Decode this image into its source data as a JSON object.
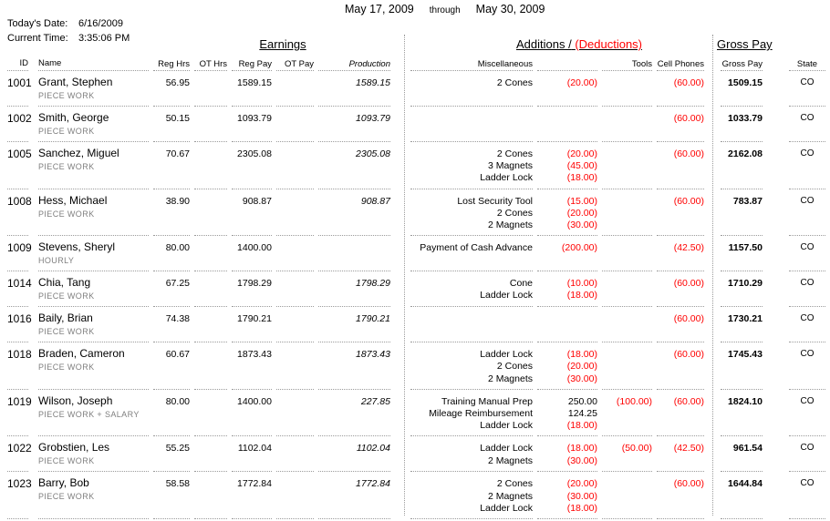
{
  "header": {
    "period_start": "May 17, 2009",
    "period_connector": "through",
    "period_end": "May 30, 2009",
    "todays_date_label": "Today's Date:",
    "todays_date_value": "6/16/2009",
    "current_time_label": "Current Time:",
    "current_time_value": "3:35:06 PM"
  },
  "section_titles": {
    "earnings": "Earnings",
    "additions": "Additions /",
    "deductions": "(Deductions)",
    "gross_pay": "Gross Pay"
  },
  "columns": {
    "id": "ID",
    "name": "Name",
    "reg_hrs": "Reg Hrs",
    "ot_hrs": "OT Hrs",
    "reg_pay": "Reg Pay",
    "ot_pay": "OT Pay",
    "production": "Production",
    "miscellaneous": "Miscellaneous",
    "tools": "Tools",
    "cell_phones": "Cell Phones",
    "gross_pay": "Gross Pay",
    "state": "State"
  },
  "colors": {
    "deduction_red": "#ff0000",
    "muted_gray": "#7f7f7f",
    "line_gray": "#9b9b9b"
  },
  "rows": [
    {
      "id": "1001",
      "name": "Grant, Stephen",
      "pay_type": "PIECE WORK",
      "reg_hrs": "56.95",
      "ot_hrs": "",
      "reg_pay": "1589.15",
      "ot_pay": "",
      "production": "1589.15",
      "misc": [
        {
          "label": "2 Cones",
          "amount": "(20.00)",
          "negative": true
        }
      ],
      "tools": "",
      "cell_phones": "(60.00)",
      "gross_pay": "1509.15",
      "state": "CO"
    },
    {
      "id": "1002",
      "name": "Smith, George",
      "pay_type": "PIECE WORK",
      "reg_hrs": "50.15",
      "ot_hrs": "",
      "reg_pay": "1093.79",
      "ot_pay": "",
      "production": "1093.79",
      "misc": [],
      "tools": "",
      "cell_phones": "(60.00)",
      "gross_pay": "1033.79",
      "state": "CO"
    },
    {
      "id": "1005",
      "name": "Sanchez, Miguel",
      "pay_type": "PIECE WORK",
      "reg_hrs": "70.67",
      "ot_hrs": "",
      "reg_pay": "2305.08",
      "ot_pay": "",
      "production": "2305.08",
      "misc": [
        {
          "label": "2 Cones",
          "amount": "(20.00)",
          "negative": true
        },
        {
          "label": "3 Magnets",
          "amount": "(45.00)",
          "negative": true
        },
        {
          "label": "Ladder Lock",
          "amount": "(18.00)",
          "negative": true
        }
      ],
      "tools": "",
      "cell_phones": "(60.00)",
      "gross_pay": "2162.08",
      "state": "CO"
    },
    {
      "id": "1008",
      "name": "Hess, Michael",
      "pay_type": "PIECE WORK",
      "reg_hrs": "38.90",
      "ot_hrs": "",
      "reg_pay": "908.87",
      "ot_pay": "",
      "production": "908.87",
      "misc": [
        {
          "label": "Lost Security Tool",
          "amount": "(15.00)",
          "negative": true
        },
        {
          "label": "2 Cones",
          "amount": "(20.00)",
          "negative": true
        },
        {
          "label": "2 Magnets",
          "amount": "(30.00)",
          "negative": true
        }
      ],
      "tools": "",
      "cell_phones": "(60.00)",
      "gross_pay": "783.87",
      "state": "CO"
    },
    {
      "id": "1009",
      "name": "Stevens, Sheryl",
      "pay_type": "HOURLY",
      "reg_hrs": "80.00",
      "ot_hrs": "",
      "reg_pay": "1400.00",
      "ot_pay": "",
      "production": "",
      "misc": [
        {
          "label": "Payment of Cash Advance",
          "amount": "(200.00)",
          "negative": true
        }
      ],
      "tools": "",
      "cell_phones": "(42.50)",
      "gross_pay": "1157.50",
      "state": "CO"
    },
    {
      "id": "1014",
      "name": "Chia, Tang",
      "pay_type": "PIECE WORK",
      "reg_hrs": "67.25",
      "ot_hrs": "",
      "reg_pay": "1798.29",
      "ot_pay": "",
      "production": "1798.29",
      "misc": [
        {
          "label": "Cone",
          "amount": "(10.00)",
          "negative": true
        },
        {
          "label": "Ladder Lock",
          "amount": "(18.00)",
          "negative": true
        }
      ],
      "tools": "",
      "cell_phones": "(60.00)",
      "gross_pay": "1710.29",
      "state": "CO"
    },
    {
      "id": "1016",
      "name": "Baily, Brian",
      "pay_type": "PIECE WORK",
      "reg_hrs": "74.38",
      "ot_hrs": "",
      "reg_pay": "1790.21",
      "ot_pay": "",
      "production": "1790.21",
      "misc": [],
      "tools": "",
      "cell_phones": "(60.00)",
      "gross_pay": "1730.21",
      "state": "CO"
    },
    {
      "id": "1018",
      "name": "Braden, Cameron",
      "pay_type": "PIECE WORK",
      "reg_hrs": "60.67",
      "ot_hrs": "",
      "reg_pay": "1873.43",
      "ot_pay": "",
      "production": "1873.43",
      "misc": [
        {
          "label": "Ladder Lock",
          "amount": "(18.00)",
          "negative": true
        },
        {
          "label": "2 Cones",
          "amount": "(20.00)",
          "negative": true
        },
        {
          "label": "2 Magnets",
          "amount": "(30.00)",
          "negative": true
        }
      ],
      "tools": "",
      "cell_phones": "(60.00)",
      "gross_pay": "1745.43",
      "state": "CO"
    },
    {
      "id": "1019",
      "name": "Wilson, Joseph",
      "pay_type": "PIECE WORK + SALARY",
      "reg_hrs": "80.00",
      "ot_hrs": "",
      "reg_pay": "1400.00",
      "ot_pay": "",
      "production": "227.85",
      "misc": [
        {
          "label": "Training Manual Prep",
          "amount": "250.00",
          "negative": false
        },
        {
          "label": "Mileage Reimbursement",
          "amount": "124.25",
          "negative": false
        },
        {
          "label": "Ladder Lock",
          "amount": "(18.00)",
          "negative": true
        }
      ],
      "tools": "(100.00)",
      "cell_phones": "(60.00)",
      "gross_pay": "1824.10",
      "state": "CO"
    },
    {
      "id": "1022",
      "name": "Grobstien, Les",
      "pay_type": "PIECE WORK",
      "reg_hrs": "55.25",
      "ot_hrs": "",
      "reg_pay": "1102.04",
      "ot_pay": "",
      "production": "1102.04",
      "misc": [
        {
          "label": "Ladder Lock",
          "amount": "(18.00)",
          "negative": true
        },
        {
          "label": "2 Magnets",
          "amount": "(30.00)",
          "negative": true
        }
      ],
      "tools": "(50.00)",
      "cell_phones": "(42.50)",
      "gross_pay": "961.54",
      "state": "CO"
    },
    {
      "id": "1023",
      "name": "Barry, Bob",
      "pay_type": "PIECE WORK",
      "reg_hrs": "58.58",
      "ot_hrs": "",
      "reg_pay": "1772.84",
      "ot_pay": "",
      "production": "1772.84",
      "misc": [
        {
          "label": "2 Cones",
          "amount": "(20.00)",
          "negative": true
        },
        {
          "label": "2 Magnets",
          "amount": "(30.00)",
          "negative": true
        },
        {
          "label": "Ladder Lock",
          "amount": "(18.00)",
          "negative": true
        }
      ],
      "tools": "",
      "cell_phones": "(60.00)",
      "gross_pay": "1644.84",
      "state": "CO"
    }
  ]
}
